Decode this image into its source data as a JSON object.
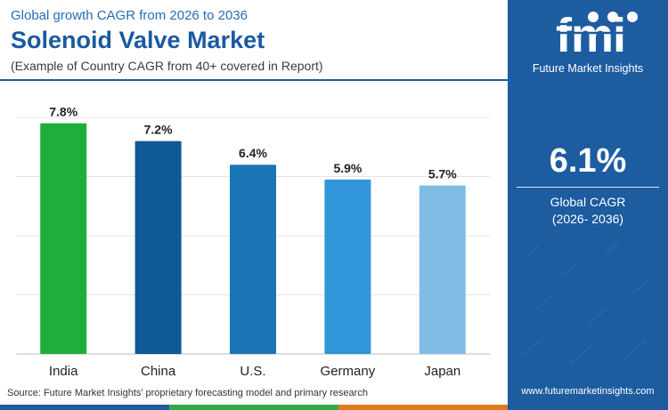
{
  "header": {
    "subtitle": "Global growth CAGR from 2026 to 2036",
    "title": "Solenoid Valve Market",
    "note": "(Example of Country CAGR from 40+ covered in Report)"
  },
  "chart_data": {
    "type": "bar",
    "categories": [
      "India",
      "China",
      "U.S.",
      "Germany",
      "Japan"
    ],
    "values": [
      7.8,
      7.2,
      6.4,
      5.9,
      5.7
    ],
    "value_labels": [
      "7.8%",
      "7.2%",
      "6.4%",
      "5.9%",
      "5.7%"
    ],
    "colors": [
      "#1fae3b",
      "#0d5a96",
      "#1b74b6",
      "#3096d9",
      "#80bde6"
    ],
    "ylim": [
      0,
      8
    ],
    "grid": true,
    "title": "",
    "xlabel": "",
    "ylabel": ""
  },
  "footer": {
    "source": "Source: Future Market Insights’ proprietary forecasting model and primary research",
    "website": "www.futuremarketinsights.com"
  },
  "sidebar": {
    "logo_text": "fmi",
    "brand": "Future Market Insights",
    "cagr_value": "6.1%",
    "cagr_label": "Global CAGR",
    "cagr_period": "(2026- 2036)"
  },
  "colors": {
    "accent": "#1d5c9f",
    "strip": [
      "#1d5c9f",
      "#2eaa4a",
      "#e07a1f",
      "#c0392b",
      "#7e57c2"
    ]
  }
}
